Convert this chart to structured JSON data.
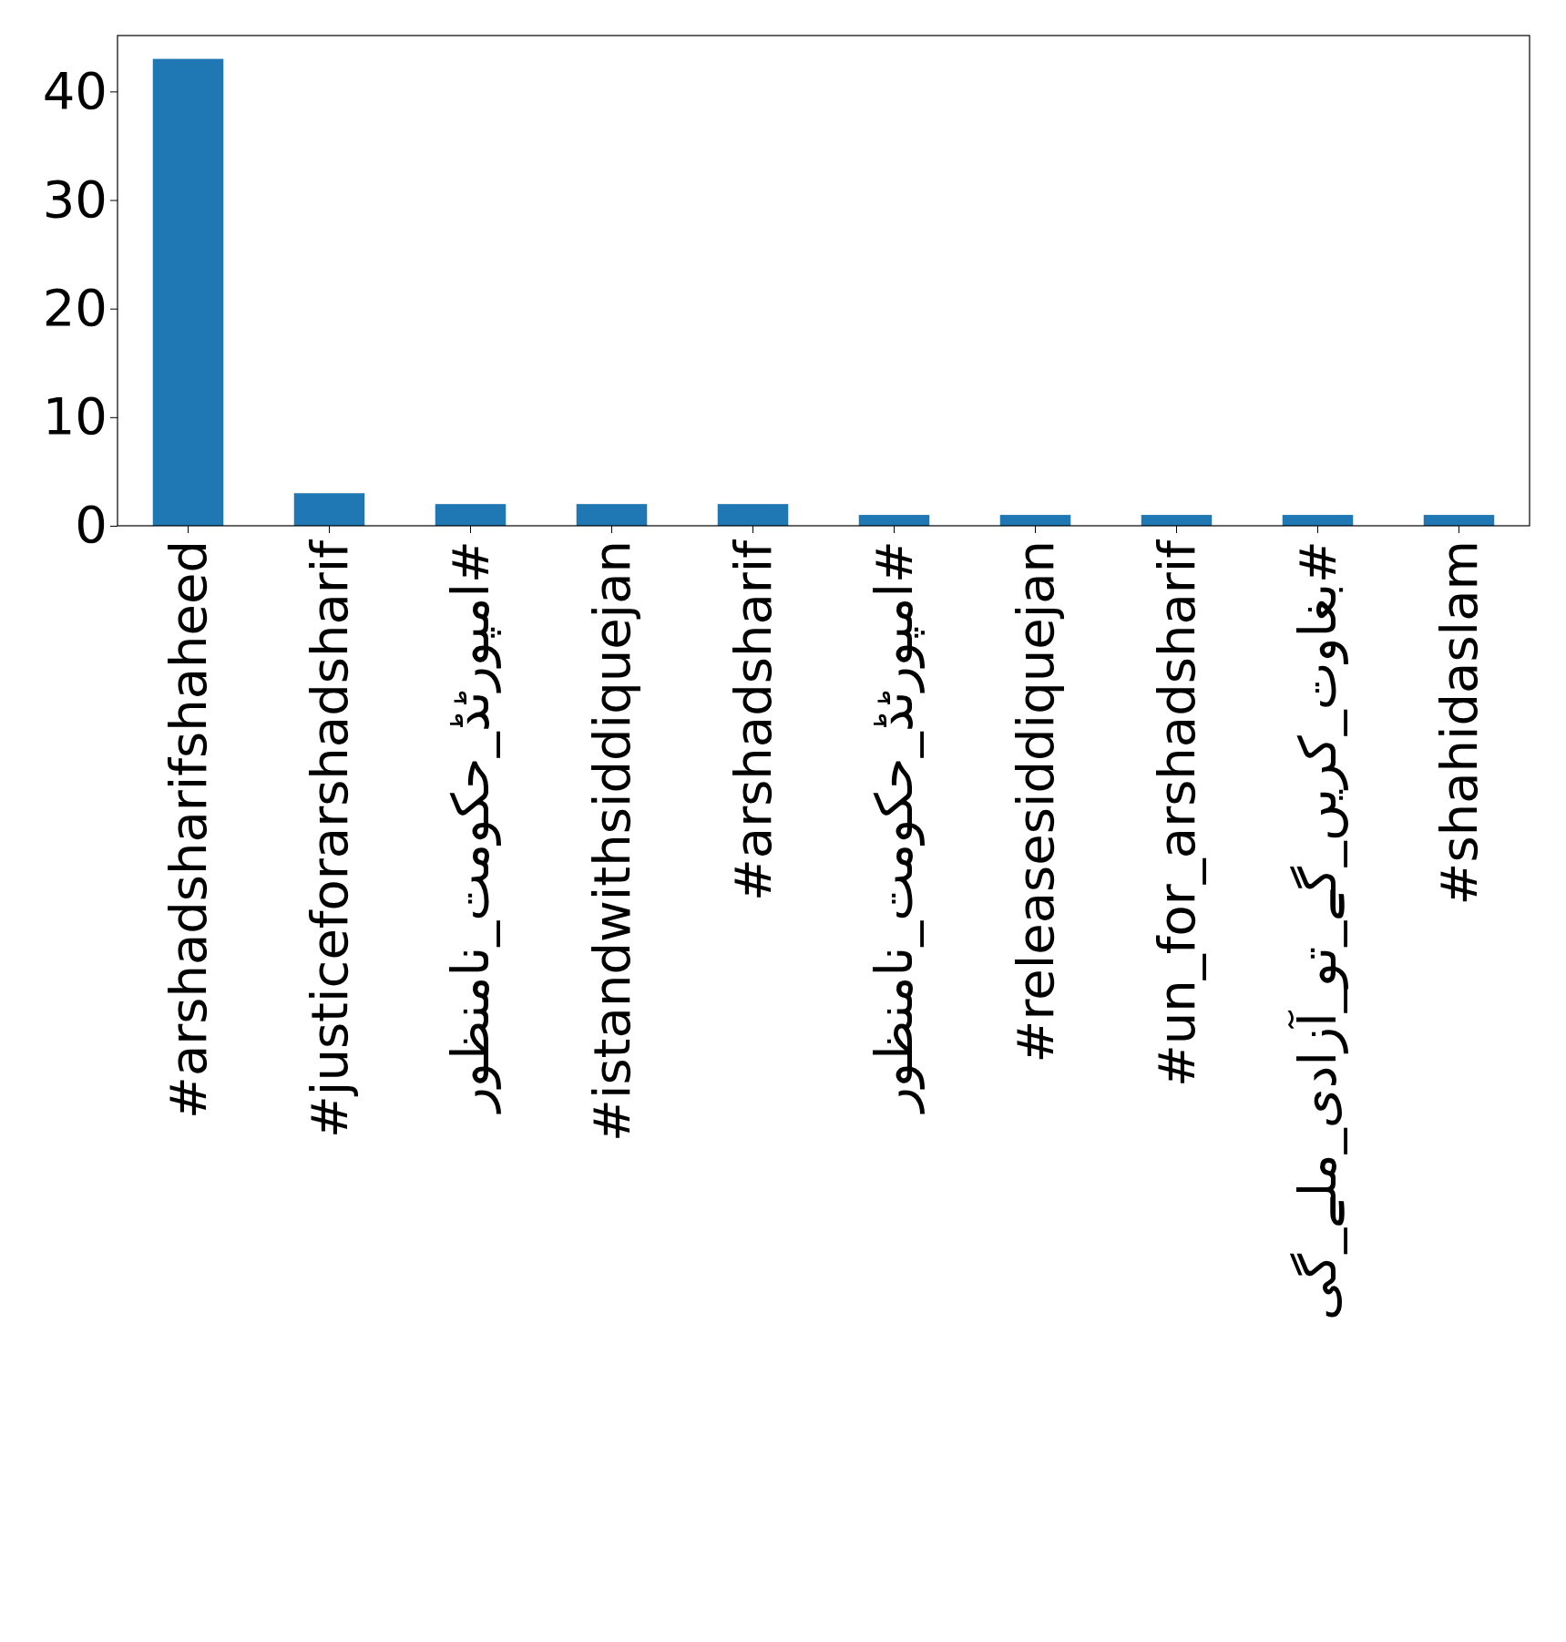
{
  "chart_data": {
    "type": "bar",
    "categories": [
      "#arshadsharifshaheed",
      "#justiceforarshadsharif",
      "#امپورٹڈ_حکومت_نامنظور",
      "#istandwithsiddiquejan",
      "#arshadsharif",
      "#امپورٹڈ_حکومت_نامنظور",
      "#releasesiddiquejan",
      "#un_for_arshadsharif",
      "#بغاوت_کریں_گے_تو_آزادی_ملے_گی",
      "#shahidaslam"
    ],
    "values": [
      43,
      3,
      2,
      2,
      2,
      1,
      1,
      1,
      1,
      1
    ],
    "color": "#1f77b4",
    "ylim": [
      0,
      45.15
    ],
    "yticks": [
      0,
      10,
      20,
      30,
      40
    ],
    "grid": false
  }
}
